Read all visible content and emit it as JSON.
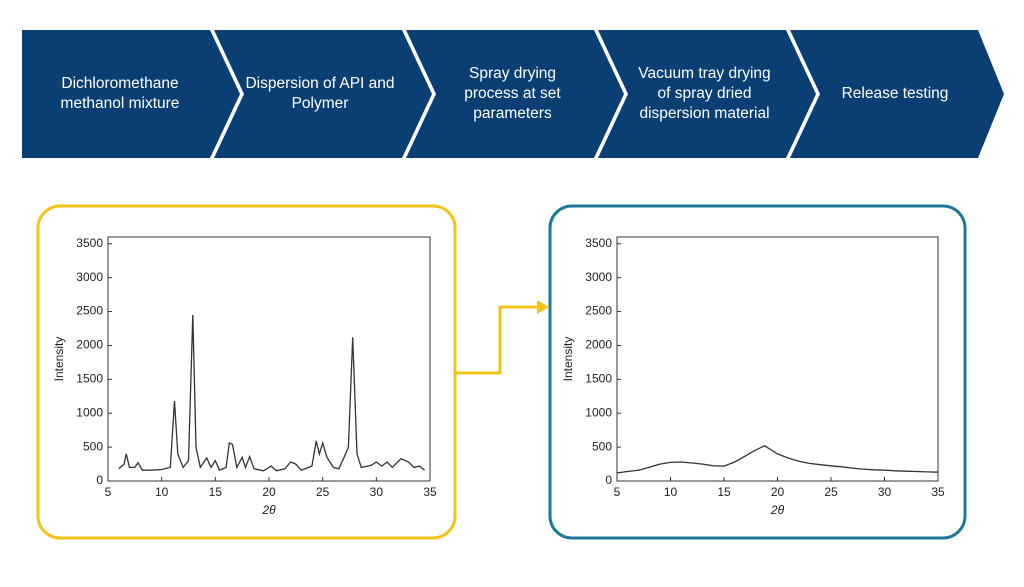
{
  "steps": [
    "Dichloromethane methanol mixture",
    "Dispersion of API and Polymer",
    "Spray drying process at set parameters",
    "Vacuum tray drying of  spray dried dispersion material",
    "Release testing"
  ],
  "chart_data": [
    {
      "type": "line",
      "xlabel": "2θ",
      "ylabel": "Intensity",
      "color": "#333333",
      "x": [
        6,
        6.5,
        6.7,
        7,
        7.5,
        7.8,
        8.2,
        9,
        10,
        10.8,
        11.2,
        11.5,
        12,
        12.5,
        12.9,
        13.2,
        13.6,
        14.2,
        14.6,
        15,
        15.4,
        16,
        16.3,
        16.6,
        17,
        17.5,
        17.8,
        18.2,
        18.6,
        19.5,
        20.2,
        20.7,
        21.5,
        22,
        22.5,
        23,
        24,
        24.4,
        24.7,
        25,
        25.4,
        26,
        26.5,
        27,
        27.4,
        27.8,
        28.2,
        28.6,
        29.5,
        30,
        30.5,
        31,
        31.5,
        32.3,
        33,
        33.5,
        34,
        34.5
      ],
      "values": [
        180,
        250,
        400,
        200,
        200,
        270,
        160,
        160,
        170,
        200,
        1180,
        400,
        200,
        300,
        2450,
        500,
        200,
        340,
        200,
        300,
        160,
        200,
        560,
        540,
        200,
        350,
        200,
        360,
        180,
        150,
        220,
        150,
        180,
        280,
        250,
        160,
        220,
        590,
        400,
        560,
        350,
        200,
        180,
        350,
        500,
        2120,
        400,
        200,
        230,
        280,
        220,
        280,
        200,
        330,
        280,
        200,
        220,
        160
      ],
      "xlim": [
        5,
        35
      ],
      "ylim": [
        0,
        3600
      ],
      "xticks": [
        5,
        10,
        15,
        20,
        25,
        30,
        35
      ],
      "yticks": [
        0,
        500,
        1000,
        1500,
        2000,
        2500,
        3000,
        3500
      ]
    },
    {
      "type": "line",
      "xlabel": "2θ",
      "ylabel": "Intensity",
      "color": "#333333",
      "x": [
        5,
        6,
        7,
        8,
        9,
        10,
        11,
        12,
        13,
        14,
        15,
        16,
        17,
        18,
        18.8,
        19.5,
        20,
        21,
        22,
        23,
        24,
        25,
        26,
        27,
        28,
        29,
        30,
        31,
        32,
        33,
        34,
        35
      ],
      "values": [
        120,
        140,
        160,
        200,
        250,
        275,
        280,
        265,
        250,
        225,
        220,
        280,
        370,
        460,
        520,
        450,
        400,
        340,
        290,
        260,
        240,
        225,
        210,
        190,
        175,
        165,
        160,
        150,
        145,
        140,
        135,
        130
      ],
      "xlim": [
        5,
        35
      ],
      "ylim": [
        0,
        3600
      ],
      "xticks": [
        5,
        10,
        15,
        20,
        25,
        30,
        35
      ],
      "yticks": [
        0,
        500,
        1000,
        1500,
        2000,
        2500,
        3000,
        3500
      ]
    }
  ]
}
